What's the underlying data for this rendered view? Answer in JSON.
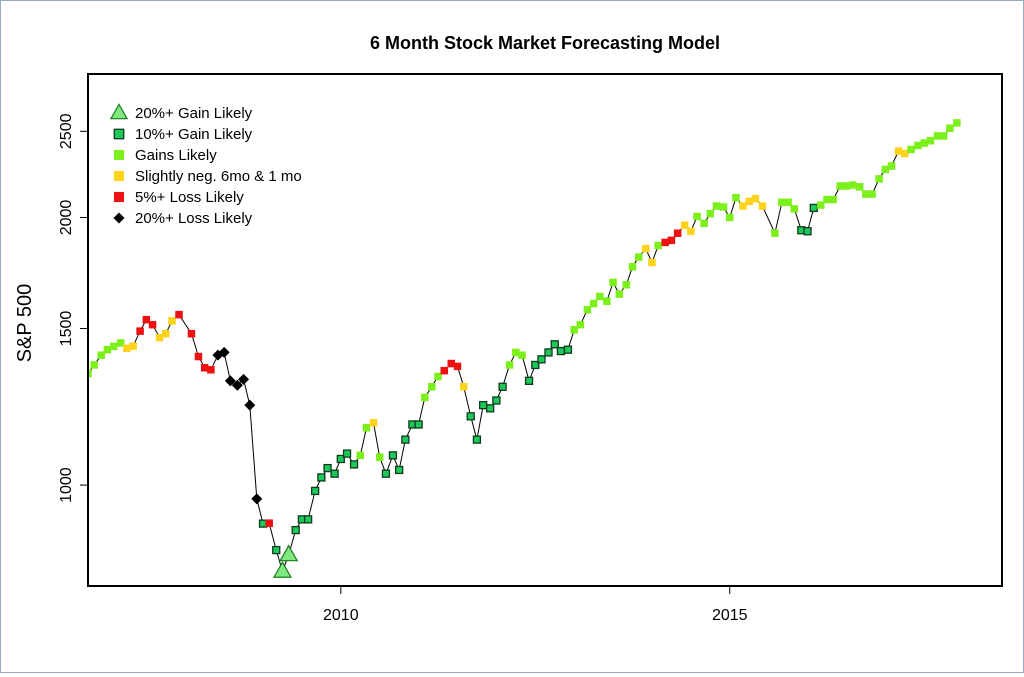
{
  "chart_data": {
    "type": "line",
    "title": "6 Month Stock Market Forecasting Model",
    "xlabel": "",
    "ylabel": "S&P 500",
    "y_scale": "log",
    "xlim": [
      2006.75,
      2018.5
    ],
    "ylim": [
      770,
      2900
    ],
    "x_ticks": [
      2010,
      2015
    ],
    "y_ticks": [
      1000,
      1500,
      2000,
      2500
    ],
    "grid": false,
    "legend_position": "top-left",
    "categories": [
      {
        "key": "g20",
        "label": "20%+ Gain Likely",
        "color": "#7fe87f",
        "shape": "triangle"
      },
      {
        "key": "g10",
        "label": "10%+ Gain Likely",
        "color": "#1ec85a",
        "shape": "square-outline"
      },
      {
        "key": "g",
        "label": "Gains Likely",
        "color": "#7cf01a",
        "shape": "square"
      },
      {
        "key": "n",
        "label": "Slightly neg. 6mo & 1 mo",
        "color": "#ffd21c",
        "shape": "square"
      },
      {
        "key": "l5",
        "label": "5%+  Loss Likely",
        "color": "#ee1111",
        "shape": "square"
      },
      {
        "key": "l20",
        "label": "20%+  Loss Likely",
        "color": "#000000",
        "shape": "diamond"
      }
    ],
    "series": [
      {
        "x": 2006.75,
        "y": 1335,
        "c": "g"
      },
      {
        "x": 2006.83,
        "y": 1365,
        "c": "g"
      },
      {
        "x": 2006.92,
        "y": 1400,
        "c": "g"
      },
      {
        "x": 2007.0,
        "y": 1420,
        "c": "g"
      },
      {
        "x": 2007.08,
        "y": 1432,
        "c": "g"
      },
      {
        "x": 2007.17,
        "y": 1445,
        "c": "g"
      },
      {
        "x": 2007.25,
        "y": 1425,
        "c": "n"
      },
      {
        "x": 2007.33,
        "y": 1433,
        "c": "n"
      },
      {
        "x": 2007.42,
        "y": 1490,
        "c": "l5"
      },
      {
        "x": 2007.5,
        "y": 1535,
        "c": "l5"
      },
      {
        "x": 2007.58,
        "y": 1515,
        "c": "l5"
      },
      {
        "x": 2007.67,
        "y": 1465,
        "c": "n"
      },
      {
        "x": 2007.75,
        "y": 1480,
        "c": "n"
      },
      {
        "x": 2007.83,
        "y": 1530,
        "c": "n"
      },
      {
        "x": 2007.92,
        "y": 1555,
        "c": "l5"
      },
      {
        "x": 2008.08,
        "y": 1480,
        "c": "l5"
      },
      {
        "x": 2008.17,
        "y": 1395,
        "c": "l5"
      },
      {
        "x": 2008.25,
        "y": 1355,
        "c": "l5"
      },
      {
        "x": 2008.33,
        "y": 1348,
        "c": "l5"
      },
      {
        "x": 2008.42,
        "y": 1400,
        "c": "l20"
      },
      {
        "x": 2008.5,
        "y": 1410,
        "c": "l20"
      },
      {
        "x": 2008.58,
        "y": 1310,
        "c": "l20"
      },
      {
        "x": 2008.67,
        "y": 1295,
        "c": "l20"
      },
      {
        "x": 2008.75,
        "y": 1315,
        "c": "l20"
      },
      {
        "x": 2008.83,
        "y": 1230,
        "c": "l20"
      },
      {
        "x": 2008.92,
        "y": 965,
        "c": "l20"
      },
      {
        "x": 2009.0,
        "y": 905,
        "c": "g10"
      },
      {
        "x": 2009.08,
        "y": 906,
        "c": "l5"
      },
      {
        "x": 2009.17,
        "y": 845,
        "c": "g10"
      },
      {
        "x": 2009.25,
        "y": 800,
        "c": "g20"
      },
      {
        "x": 2009.33,
        "y": 835,
        "c": "g20"
      },
      {
        "x": 2009.42,
        "y": 890,
        "c": "g10"
      },
      {
        "x": 2009.5,
        "y": 915,
        "c": "g10"
      },
      {
        "x": 2009.58,
        "y": 915,
        "c": "g10"
      },
      {
        "x": 2009.67,
        "y": 985,
        "c": "g10"
      },
      {
        "x": 2009.75,
        "y": 1020,
        "c": "g10"
      },
      {
        "x": 2009.83,
        "y": 1045,
        "c": "g10"
      },
      {
        "x": 2009.92,
        "y": 1030,
        "c": "g10"
      },
      {
        "x": 2010.0,
        "y": 1070,
        "c": "g10"
      },
      {
        "x": 2010.08,
        "y": 1085,
        "c": "g10"
      },
      {
        "x": 2010.17,
        "y": 1055,
        "c": "g10"
      },
      {
        "x": 2010.25,
        "y": 1080,
        "c": "g"
      },
      {
        "x": 2010.33,
        "y": 1160,
        "c": "g"
      },
      {
        "x": 2010.42,
        "y": 1175,
        "c": "n"
      },
      {
        "x": 2010.5,
        "y": 1075,
        "c": "g"
      },
      {
        "x": 2010.58,
        "y": 1030,
        "c": "g10"
      },
      {
        "x": 2010.67,
        "y": 1080,
        "c": "g10"
      },
      {
        "x": 2010.75,
        "y": 1040,
        "c": "g10"
      },
      {
        "x": 2010.83,
        "y": 1125,
        "c": "g10"
      },
      {
        "x": 2010.92,
        "y": 1170,
        "c": "g10"
      },
      {
        "x": 2011.0,
        "y": 1170,
        "c": "g10"
      },
      {
        "x": 2011.08,
        "y": 1255,
        "c": "g"
      },
      {
        "x": 2011.17,
        "y": 1290,
        "c": "g"
      },
      {
        "x": 2011.25,
        "y": 1325,
        "c": "g"
      },
      {
        "x": 2011.33,
        "y": 1345,
        "c": "l5"
      },
      {
        "x": 2011.42,
        "y": 1370,
        "c": "l5"
      },
      {
        "x": 2011.5,
        "y": 1360,
        "c": "l5"
      },
      {
        "x": 2011.58,
        "y": 1290,
        "c": "n"
      },
      {
        "x": 2011.67,
        "y": 1195,
        "c": "g10"
      },
      {
        "x": 2011.75,
        "y": 1125,
        "c": "g10"
      },
      {
        "x": 2011.83,
        "y": 1230,
        "c": "g10"
      },
      {
        "x": 2011.92,
        "y": 1220,
        "c": "g10"
      },
      {
        "x": 2012.0,
        "y": 1245,
        "c": "g10"
      },
      {
        "x": 2012.08,
        "y": 1290,
        "c": "g10"
      },
      {
        "x": 2012.17,
        "y": 1365,
        "c": "g"
      },
      {
        "x": 2012.25,
        "y": 1410,
        "c": "g"
      },
      {
        "x": 2012.33,
        "y": 1400,
        "c": "g"
      },
      {
        "x": 2012.42,
        "y": 1310,
        "c": "g10"
      },
      {
        "x": 2012.5,
        "y": 1365,
        "c": "g10"
      },
      {
        "x": 2012.58,
        "y": 1385,
        "c": "g10"
      },
      {
        "x": 2012.67,
        "y": 1410,
        "c": "g10"
      },
      {
        "x": 2012.75,
        "y": 1440,
        "c": "g10"
      },
      {
        "x": 2012.83,
        "y": 1415,
        "c": "g10"
      },
      {
        "x": 2012.92,
        "y": 1420,
        "c": "g10"
      },
      {
        "x": 2013.0,
        "y": 1495,
        "c": "g"
      },
      {
        "x": 2013.08,
        "y": 1515,
        "c": "g"
      },
      {
        "x": 2013.17,
        "y": 1575,
        "c": "g"
      },
      {
        "x": 2013.25,
        "y": 1600,
        "c": "g"
      },
      {
        "x": 2013.33,
        "y": 1630,
        "c": "g"
      },
      {
        "x": 2013.42,
        "y": 1610,
        "c": "g"
      },
      {
        "x": 2013.5,
        "y": 1690,
        "c": "g"
      },
      {
        "x": 2013.58,
        "y": 1640,
        "c": "g"
      },
      {
        "x": 2013.67,
        "y": 1680,
        "c": "g"
      },
      {
        "x": 2013.75,
        "y": 1760,
        "c": "g"
      },
      {
        "x": 2013.83,
        "y": 1805,
        "c": "g"
      },
      {
        "x": 2013.92,
        "y": 1845,
        "c": "n"
      },
      {
        "x": 2014.0,
        "y": 1780,
        "c": "n"
      },
      {
        "x": 2014.08,
        "y": 1860,
        "c": "g"
      },
      {
        "x": 2014.17,
        "y": 1875,
        "c": "l5"
      },
      {
        "x": 2014.25,
        "y": 1885,
        "c": "l5"
      },
      {
        "x": 2014.33,
        "y": 1920,
        "c": "l5"
      },
      {
        "x": 2014.42,
        "y": 1960,
        "c": "n"
      },
      {
        "x": 2014.5,
        "y": 1930,
        "c": "n"
      },
      {
        "x": 2014.58,
        "y": 2005,
        "c": "g"
      },
      {
        "x": 2014.67,
        "y": 1970,
        "c": "g"
      },
      {
        "x": 2014.75,
        "y": 2020,
        "c": "g"
      },
      {
        "x": 2014.83,
        "y": 2060,
        "c": "g"
      },
      {
        "x": 2014.92,
        "y": 2055,
        "c": "g"
      },
      {
        "x": 2015.0,
        "y": 2000,
        "c": "g"
      },
      {
        "x": 2015.08,
        "y": 2105,
        "c": "g"
      },
      {
        "x": 2015.17,
        "y": 2060,
        "c": "n"
      },
      {
        "x": 2015.25,
        "y": 2085,
        "c": "n"
      },
      {
        "x": 2015.33,
        "y": 2100,
        "c": "n"
      },
      {
        "x": 2015.42,
        "y": 2060,
        "c": "n"
      },
      {
        "x": 2015.58,
        "y": 1920,
        "c": "g"
      },
      {
        "x": 2015.67,
        "y": 2080,
        "c": "g"
      },
      {
        "x": 2015.75,
        "y": 2080,
        "c": "g"
      },
      {
        "x": 2015.83,
        "y": 2045,
        "c": "g"
      },
      {
        "x": 2015.92,
        "y": 1935,
        "c": "g10"
      },
      {
        "x": 2016.0,
        "y": 1930,
        "c": "g10"
      },
      {
        "x": 2016.08,
        "y": 2050,
        "c": "g10"
      },
      {
        "x": 2016.17,
        "y": 2065,
        "c": "g"
      },
      {
        "x": 2016.25,
        "y": 2095,
        "c": "g"
      },
      {
        "x": 2016.33,
        "y": 2095,
        "c": "g"
      },
      {
        "x": 2016.42,
        "y": 2170,
        "c": "g"
      },
      {
        "x": 2016.5,
        "y": 2170,
        "c": "g"
      },
      {
        "x": 2016.58,
        "y": 2175,
        "c": "g"
      },
      {
        "x": 2016.67,
        "y": 2165,
        "c": "g"
      },
      {
        "x": 2016.75,
        "y": 2125,
        "c": "g"
      },
      {
        "x": 2016.83,
        "y": 2125,
        "c": "g"
      },
      {
        "x": 2016.92,
        "y": 2210,
        "c": "g"
      },
      {
        "x": 2017.0,
        "y": 2265,
        "c": "g"
      },
      {
        "x": 2017.08,
        "y": 2285,
        "c": "g"
      },
      {
        "x": 2017.17,
        "y": 2375,
        "c": "n"
      },
      {
        "x": 2017.25,
        "y": 2360,
        "c": "n"
      },
      {
        "x": 2017.33,
        "y": 2385,
        "c": "g"
      },
      {
        "x": 2017.42,
        "y": 2410,
        "c": "g"
      },
      {
        "x": 2017.5,
        "y": 2425,
        "c": "g"
      },
      {
        "x": 2017.58,
        "y": 2440,
        "c": "g"
      },
      {
        "x": 2017.67,
        "y": 2470,
        "c": "g"
      },
      {
        "x": 2017.75,
        "y": 2470,
        "c": "g"
      },
      {
        "x": 2017.83,
        "y": 2520,
        "c": "g"
      },
      {
        "x": 2017.92,
        "y": 2555,
        "c": "g"
      }
    ]
  }
}
